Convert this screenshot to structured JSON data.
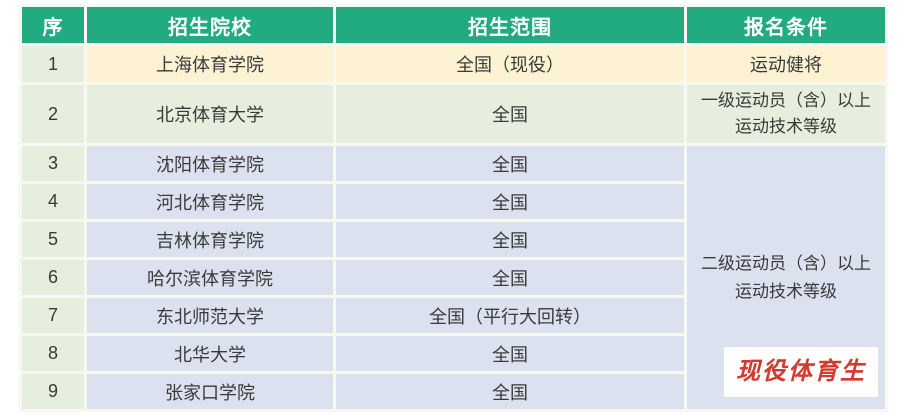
{
  "colors": {
    "header_bg": "#22ab81",
    "header_text": "#ffffff",
    "index_col_bg": "#e6eedd",
    "row1_bg": "#fdf3d3",
    "row2_bg": "#e6eedd",
    "group_rows_bg": "#dce1f0",
    "body_text": "#3a3a3a",
    "watermark_red": "#d6382e",
    "watermark_bg": "#ffffff"
  },
  "table": {
    "headers": [
      "序",
      "招生院校",
      "招生范围",
      "报名条件"
    ],
    "merged_condition": "二级运动员（含）以上\n运动技术等级",
    "rows": [
      {
        "num": "1",
        "school": "上海体育学院",
        "scope": "全国（现役）",
        "condition": "运动健将"
      },
      {
        "num": "2",
        "school": "北京体育大学",
        "scope": "全国",
        "condition": "一级运动员（含）以上\n运动技术等级"
      },
      {
        "num": "3",
        "school": "沈阳体育学院",
        "scope": "全国"
      },
      {
        "num": "4",
        "school": "河北体育学院",
        "scope": "全国"
      },
      {
        "num": "5",
        "school": "吉林体育学院",
        "scope": "全国"
      },
      {
        "num": "6",
        "school": "哈尔滨体育学院",
        "scope": "全国"
      },
      {
        "num": "7",
        "school": "东北师范大学",
        "scope": "全国（平行大回转）"
      },
      {
        "num": "8",
        "school": "北华大学",
        "scope": "全国"
      },
      {
        "num": "9",
        "school": "张家口学院",
        "scope": "全国"
      }
    ]
  },
  "watermark": {
    "text": "现役体育生"
  }
}
